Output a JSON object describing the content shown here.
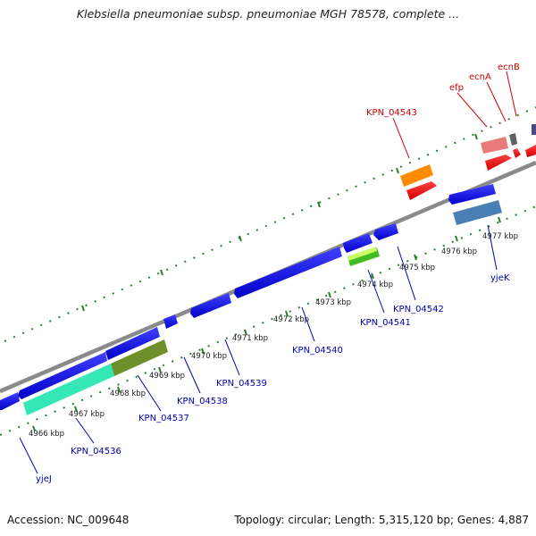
{
  "header": {
    "title": "Klebsiella pneumoniae subsp. pneumoniae MGH 78578, complete ..."
  },
  "footer": {
    "accession": "Accession: NC_009648",
    "summary": "Topology: circular; Length: 5,315,120 bp; Genes: 4,887"
  },
  "colors": {
    "forward_label": "#cc0000",
    "reverse_label": "#0000aa",
    "backbone": "#888888",
    "tick": "#2e7d32"
  },
  "scale_labels": [
    "4966 kbp",
    "4967 kbp",
    "4968 kbp",
    "4969 kbp",
    "4970 kbp",
    "4971 kbp",
    "4972 kbp",
    "4973 kbp",
    "4974 kbp",
    "4975 kbp",
    "4976 kbp",
    "4977 kbp"
  ],
  "gene_labels": {
    "forward": [
      "KPN_04543",
      "efp",
      "ecnA",
      "ecnB"
    ],
    "reverse": [
      "yjeJ",
      "KPN_04536",
      "KPN_04537",
      "KPN_04538",
      "KPN_04539",
      "KPN_04540",
      "KPN_04541",
      "KPN_04542",
      "yjeK"
    ]
  }
}
